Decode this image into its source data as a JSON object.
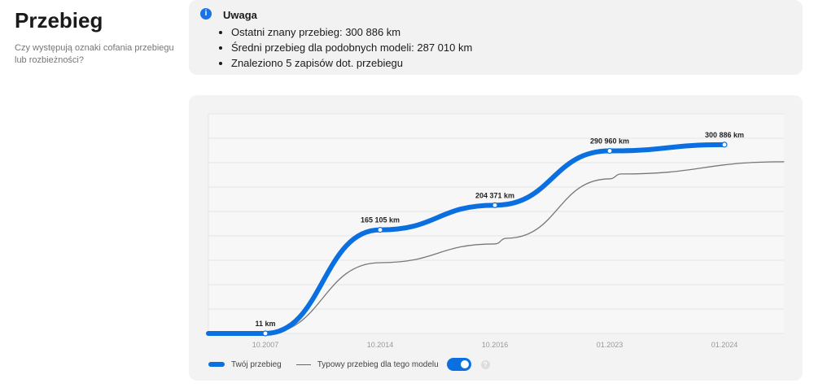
{
  "header": {
    "title": "Przebieg",
    "subtitle": "Czy występują oznaki cofania przebiegu lub rozbieżności?"
  },
  "alert": {
    "icon": "info-icon",
    "title": "Uwaga",
    "items": [
      "Ostatni znany przebieg: 300 886 km",
      "Średni przebieg dla podobnych modeli: 287 010 km",
      "Znaleziono 5 zapisów dot. przebiegu"
    ]
  },
  "chart_data": {
    "type": "line",
    "categories": [
      "10.2007",
      "10.2014",
      "10.2016",
      "01.2023",
      "01.2024"
    ],
    "ylim": [
      0,
      350000
    ],
    "grid": true,
    "series": [
      {
        "name": "Twój przebieg",
        "color": "#0a6fe0",
        "x": [
          -0.5,
          0,
          1,
          2,
          3,
          4
        ],
        "values": [
          0,
          11,
          165105,
          204371,
          290960,
          300886
        ],
        "labels": [
          "",
          "11 km",
          "165 105 km",
          "204 371 km",
          "290 960 km",
          "300 886 km"
        ]
      },
      {
        "name": "Typowy przebieg dla tego modelu",
        "color": "#777777",
        "x": [
          0,
          1,
          2,
          2.1,
          3,
          3.1,
          4.52
        ],
        "values": [
          0,
          112800,
          142700,
          151700,
          246400,
          254200,
          273700
        ]
      }
    ]
  },
  "legend": {
    "series1": "Twój przebieg",
    "series2": "Typowy przebieg dla tego modelu",
    "toggle_on": true
  }
}
